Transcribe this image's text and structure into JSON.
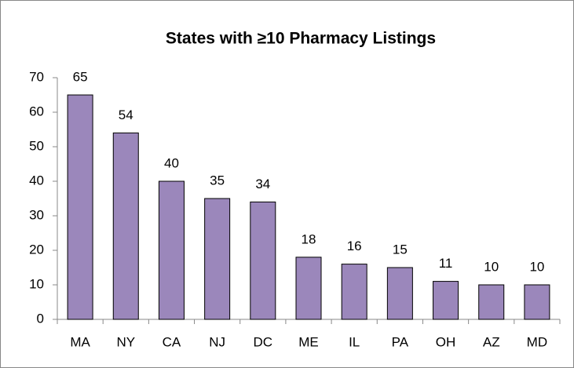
{
  "chart_data": {
    "type": "bar",
    "title": "States with ≥10 Pharmacy Listings",
    "categories": [
      "MA",
      "NY",
      "CA",
      "NJ",
      "DC",
      "ME",
      "IL",
      "PA",
      "OH",
      "AZ",
      "MD"
    ],
    "values": [
      65,
      54,
      40,
      35,
      34,
      18,
      16,
      15,
      11,
      10,
      10
    ],
    "color": "#9b87bb",
    "ylim": [
      0,
      70
    ],
    "yticks": [
      0,
      10,
      20,
      30,
      40,
      50,
      60,
      70
    ]
  }
}
